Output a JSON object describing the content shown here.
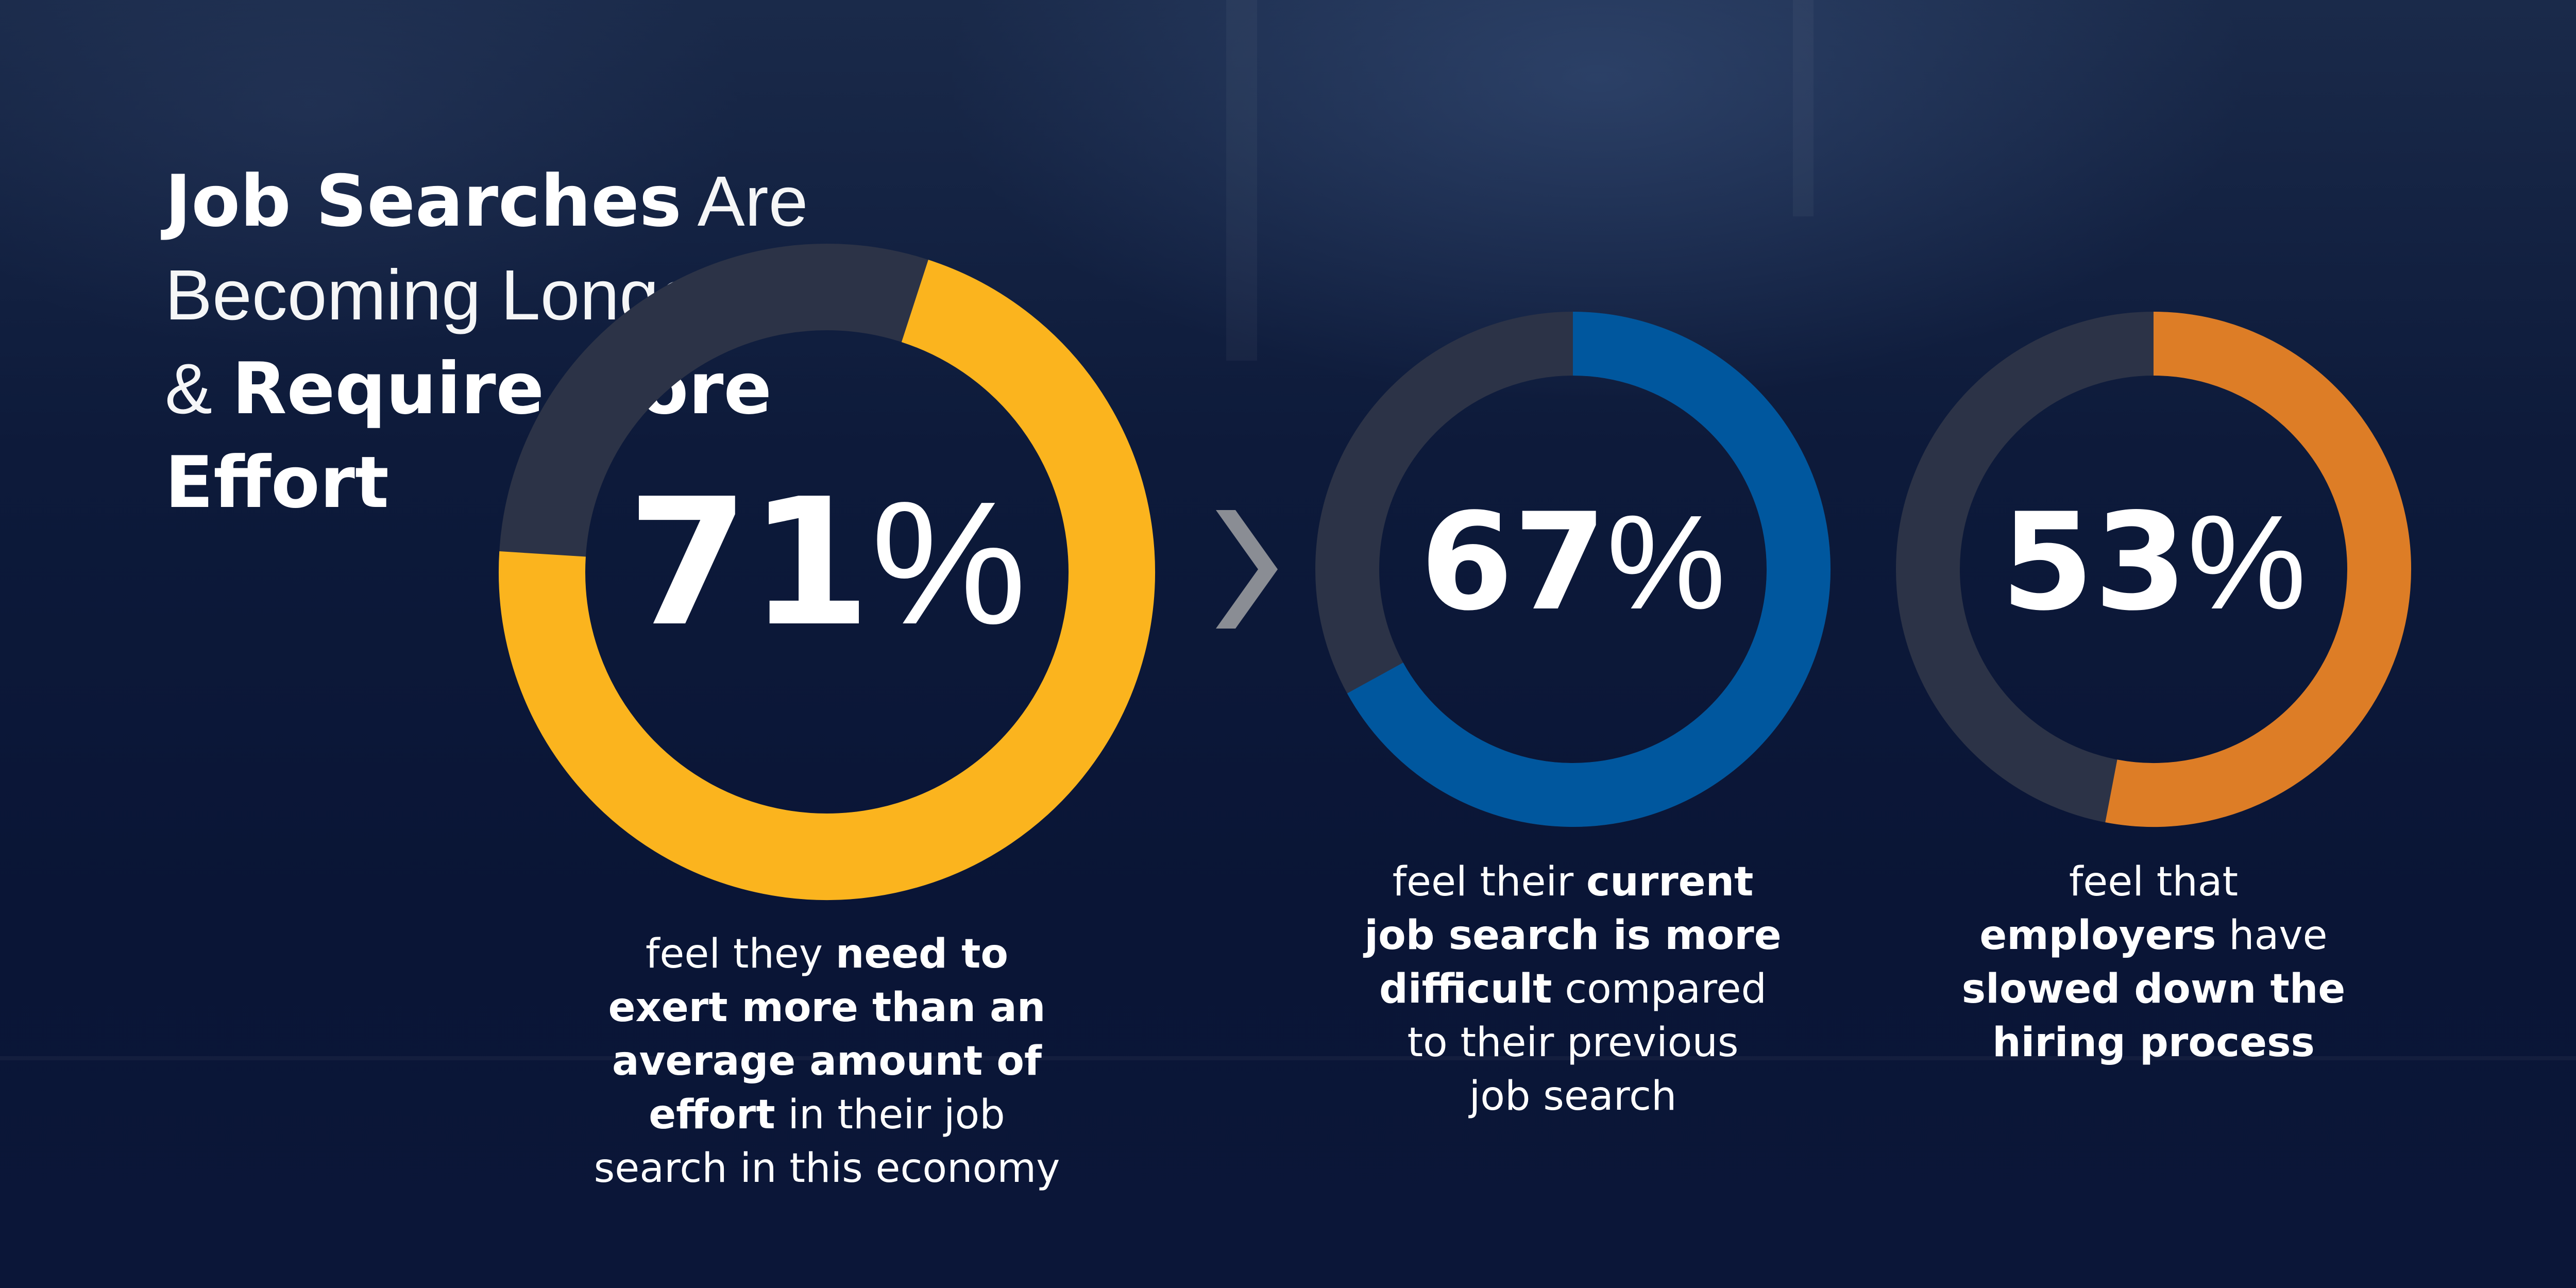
{
  "title": {
    "part1_bold": "Job Searches",
    "part2": " Are",
    "part3": "Becoming Longer",
    "part4": "& ",
    "part5_bold": "Require More",
    "part6_bold": "Effort"
  },
  "chart_data": {
    "type": "pie",
    "style": "donut",
    "series": [
      {
        "value": 71,
        "label": "71",
        "symbol": "%",
        "color": "#FBB41E",
        "caption": [
          [
            {
              "t": "feel they "
            },
            {
              "t": "need to",
              "b": true
            }
          ],
          [
            {
              "t": "exert more than an",
              "b": true
            }
          ],
          [
            {
              "t": "average amount of",
              "b": true
            }
          ],
          [
            {
              "t": "effort",
              "b": true
            },
            {
              "t": " in their job"
            }
          ],
          [
            {
              "t": "search in this economy"
            }
          ]
        ]
      },
      {
        "value": 67,
        "label": "67",
        "symbol": "%",
        "color": "#00579E",
        "caption": [
          [
            {
              "t": "feel their "
            },
            {
              "t": "current",
              "b": true
            }
          ],
          [
            {
              "t": "job search is more",
              "b": true
            }
          ],
          [
            {
              "t": "difficult",
              "b": true
            },
            {
              "t": " compared"
            }
          ],
          [
            {
              "t": "to their previous"
            }
          ],
          [
            {
              "t": "job search"
            }
          ]
        ]
      },
      {
        "value": 53,
        "label": "53",
        "symbol": "%",
        "color": "#DD7D26",
        "caption": [
          [
            {
              "t": "feel that"
            }
          ],
          [
            {
              "t": "employers",
              "b": true
            },
            {
              "t": " have"
            }
          ],
          [
            {
              "t": "slowed down the",
              "b": true
            }
          ],
          [
            {
              "t": "hiring process",
              "b": true
            }
          ]
        ]
      }
    ],
    "track_color": "#2C3347",
    "arrow_color": "#8A8D94"
  }
}
